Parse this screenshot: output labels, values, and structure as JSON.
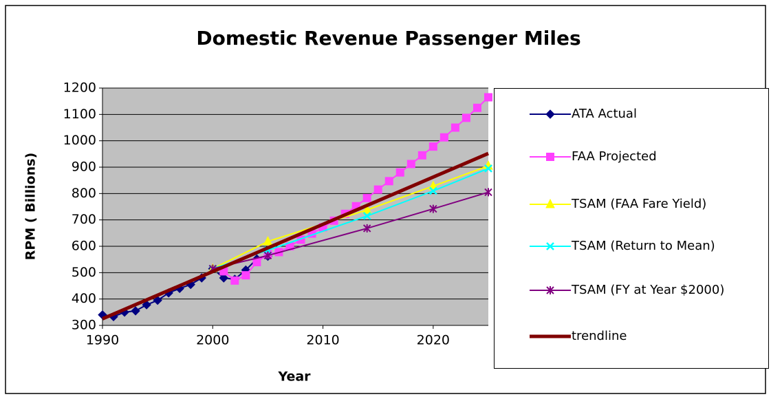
{
  "chart_data": {
    "type": "line",
    "title": "Domestic Revenue Passenger Miles",
    "x_label": "Year",
    "y_label": "RPM ( Billions)",
    "xlim": [
      1990,
      2025
    ],
    "xticks": [
      1990,
      2000,
      2010,
      2020
    ],
    "ylim": [
      300,
      1200
    ],
    "yticks": [
      300,
      400,
      500,
      600,
      700,
      800,
      900,
      1000,
      1100,
      1200
    ],
    "grid": true,
    "plot_background": "#c0c0c0",
    "series": [
      {
        "name": "ATA Actual",
        "color": "#000080",
        "marker": "diamond",
        "x": [
          1990,
          1991,
          1992,
          1993,
          1994,
          1995,
          1996,
          1997,
          1998,
          1999,
          2000,
          2001,
          2002,
          2003,
          2004,
          2005
        ],
        "values": [
          340,
          333,
          350,
          355,
          378,
          395,
          423,
          440,
          455,
          480,
          515,
          480,
          475,
          510,
          552,
          562
        ]
      },
      {
        "name": "FAA Projected",
        "color": "#ff40ff",
        "marker": "square",
        "x": [
          2001,
          2002,
          2003,
          2004,
          2005,
          2006,
          2007,
          2008,
          2009,
          2010,
          2011,
          2012,
          2013,
          2014,
          2015,
          2016,
          2017,
          2018,
          2019,
          2020,
          2021,
          2022,
          2023,
          2024,
          2025
        ],
        "values": [
          505,
          470,
          490,
          540,
          570,
          578,
          600,
          625,
          648,
          672,
          697,
          723,
          752,
          783,
          815,
          847,
          880,
          912,
          945,
          978,
          1013,
          1050,
          1087,
          1125,
          1165
        ]
      },
      {
        "name": "TSAM (FAA Fare Yield)",
        "color": "#ffff00",
        "marker": "triangle",
        "x": [
          2000,
          2005,
          2014,
          2020,
          2025
        ],
        "values": [
          515,
          618,
          738,
          828,
          905
        ]
      },
      {
        "name": "TSAM (Return to Mean)",
        "color": "#00ffff",
        "marker": "x",
        "x": [
          2000,
          2005,
          2014,
          2020,
          2025
        ],
        "values": [
          515,
          585,
          715,
          810,
          895
        ]
      },
      {
        "name": "TSAM (FY at Year $2000)",
        "color": "#800080",
        "marker": "asterisk",
        "x": [
          2000,
          2005,
          2014,
          2020,
          2025
        ],
        "values": [
          515,
          565,
          668,
          742,
          805
        ]
      },
      {
        "name": "trendline",
        "color": "#800000",
        "x": [
          1990,
          2025
        ],
        "values": [
          325,
          952
        ]
      }
    ]
  }
}
